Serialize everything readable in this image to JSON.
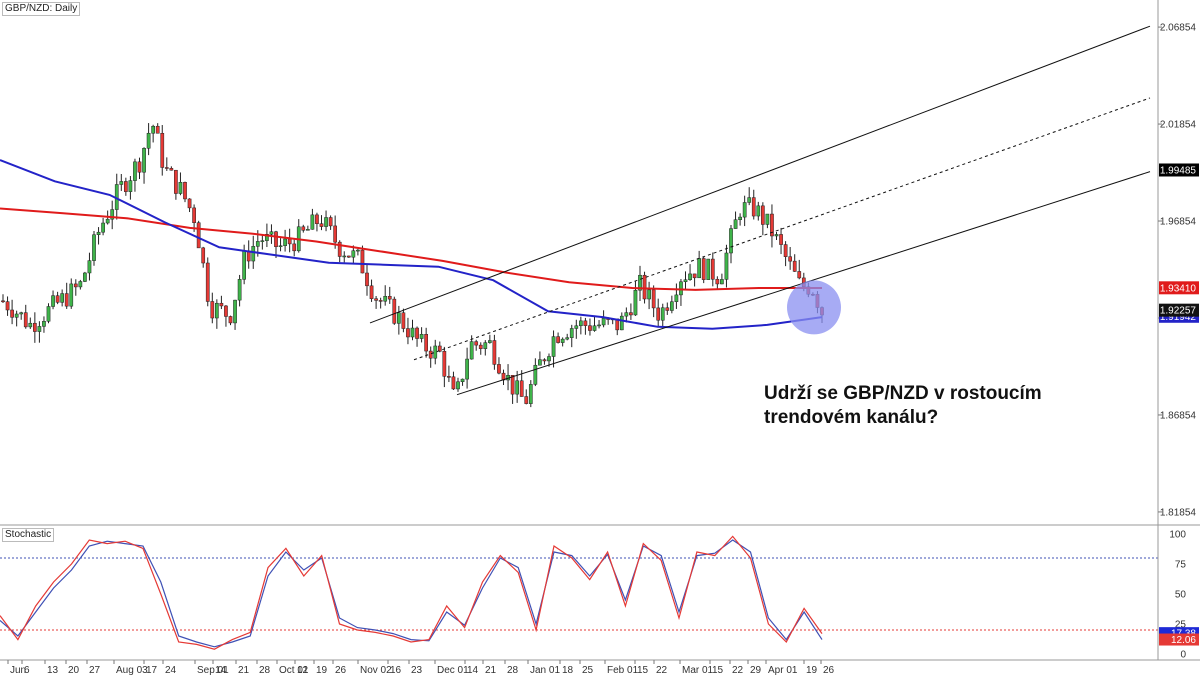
{
  "header": {
    "symbol_label": "GBP/NZD: Daily"
  },
  "annotation": {
    "line1": "Udrží se GBP/NZD v rostoucím",
    "line2": "trendovém kanálu?"
  },
  "stochastic": {
    "label": "Stochastic",
    "current_values": [
      "17.38",
      "12.06"
    ],
    "levels": [
      100,
      75,
      50,
      25,
      0
    ],
    "overbought": 80,
    "oversold": 20,
    "colors": {
      "k": "#e53935",
      "d": "#3f51b5",
      "current_bg": "#1e2ad6"
    }
  },
  "colors": {
    "bull": "#3fb44a",
    "bear": "#e53935",
    "ma_fast": "#2323c8",
    "ma_slow": "#e01b1b",
    "channel": "#111111",
    "highlight": "#8a8ff0",
    "price_now_bg": "#111111"
  },
  "price_labels": {
    "current": "1.92257",
    "ma_slow": "1.93410",
    "ma_fast": "1.91942",
    "channel_top": "1.99485"
  },
  "chart_data": {
    "type": "candlestick",
    "title": "GBP/NZD: Daily",
    "y_ticks": [
      "2.06854",
      "2.01854",
      "1.96854",
      "1.91854",
      "1.86854",
      "1.81854"
    ],
    "ylim": [
      1.8118,
      2.0825
    ],
    "x_ticks": [
      "Jun",
      "6",
      "13",
      "20",
      "27",
      "Aug 03",
      "17",
      "24",
      "Sep 01",
      "14",
      "21",
      "28",
      "Oct 01",
      "12",
      "19",
      "26",
      "Nov 02",
      "16",
      "23",
      "Dec 01",
      "14",
      "21",
      "28",
      "Jan 01",
      "18",
      "25",
      "Feb 01",
      "15",
      "22",
      "Mar 01",
      "15",
      "22",
      "29",
      "Apr 01",
      "19",
      "26"
    ],
    "ma_slow_points": [
      1.975,
      1.9725,
      1.97,
      1.965,
      1.962,
      1.958,
      1.953,
      1.948,
      1.942,
      1.937,
      1.934,
      1.933,
      1.934,
      1.934
    ],
    "ma_fast_points": [
      2.0,
      1.989,
      1.982,
      1.968,
      1.955,
      1.951,
      1.947,
      1.946,
      1.945,
      1.938,
      1.922,
      1.919,
      1.914,
      1.913,
      1.915,
      1.919
    ],
    "channel": {
      "upper": [
        1.916,
        2.069
      ],
      "lower": [
        1.879,
        1.994
      ],
      "mid": [
        1.897,
        2.032
      ]
    },
    "stochastic_k_points": [
      32,
      12,
      40,
      60,
      75,
      95,
      92,
      94,
      88,
      50,
      10,
      8,
      4,
      12,
      18,
      72,
      88,
      65,
      82,
      25,
      20,
      18,
      15,
      10,
      12,
      40,
      22,
      60,
      82,
      68,
      20,
      90,
      80,
      62,
      85,
      40,
      92,
      78,
      30,
      85,
      82,
      98,
      80,
      25,
      10,
      38,
      17
    ],
    "stochastic_d_points": [
      28,
      15,
      35,
      55,
      70,
      90,
      94,
      92,
      90,
      60,
      15,
      10,
      6,
      10,
      15,
      65,
      85,
      70,
      80,
      30,
      22,
      20,
      17,
      12,
      11,
      35,
      24,
      55,
      80,
      72,
      25,
      85,
      82,
      65,
      83,
      45,
      90,
      82,
      35,
      82,
      84,
      95,
      85,
      30,
      12,
      35,
      12
    ]
  }
}
